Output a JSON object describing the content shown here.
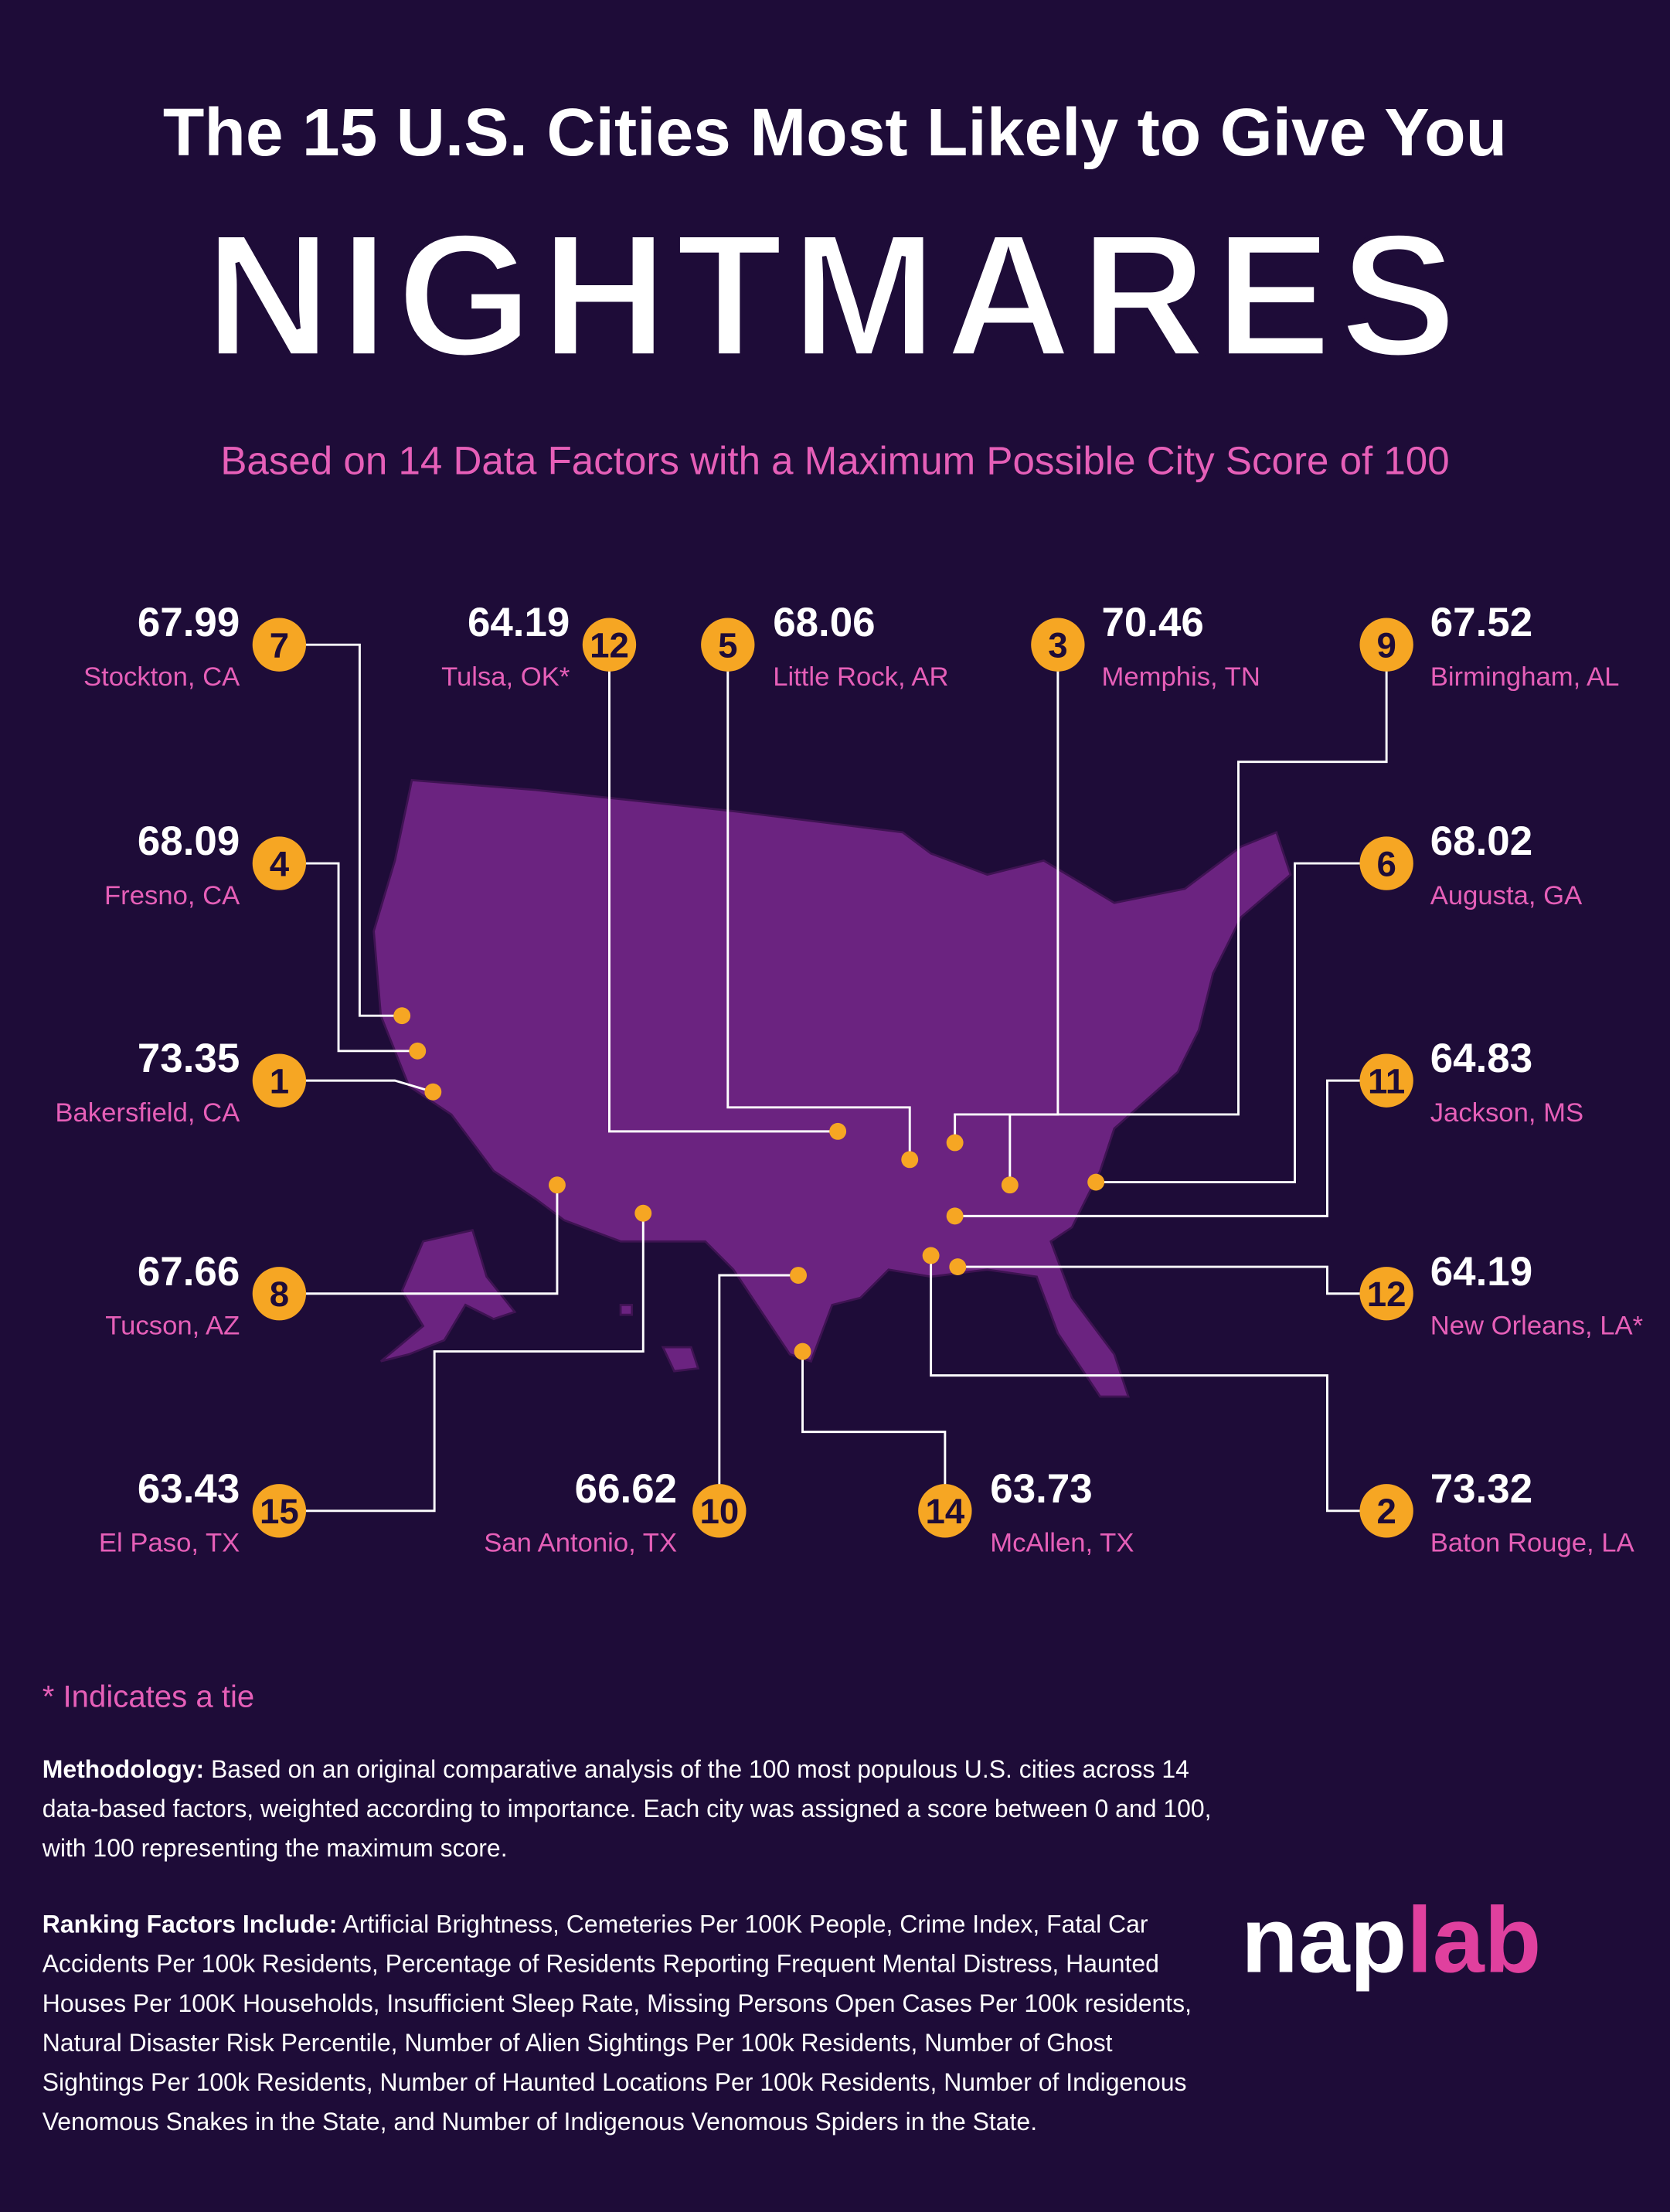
{
  "header": {
    "title": "The 15 U.S. Cities Most Likely to Give You",
    "headline": "NIGHTMARES",
    "subtitle": "Based on 14 Data Factors with a Maximum Possible City Score of 100"
  },
  "cities": [
    {
      "rank": 7,
      "score": 67.99,
      "name": "Stockton, CA"
    },
    {
      "rank": 4,
      "score": 68.09,
      "name": "Fresno, CA"
    },
    {
      "rank": 1,
      "score": 73.35,
      "name": "Bakersfield, CA"
    },
    {
      "rank": 8,
      "score": 67.66,
      "name": "Tucson, AZ"
    },
    {
      "rank": 15,
      "score": 63.43,
      "name": "El Paso, TX"
    },
    {
      "rank": 12,
      "score": 64.19,
      "name": "Tulsa, OK*"
    },
    {
      "rank": 5,
      "score": 68.06,
      "name": "Little Rock, AR"
    },
    {
      "rank": 3,
      "score": 70.46,
      "name": "Memphis, TN"
    },
    {
      "rank": 9,
      "score": 67.52,
      "name": "Birmingham, AL"
    },
    {
      "rank": 6,
      "score": 68.02,
      "name": "Augusta, GA"
    },
    {
      "rank": 11,
      "score": 64.83,
      "name": "Jackson, MS"
    },
    {
      "rank": 12,
      "score": 64.19,
      "name": "New Orleans, LA*"
    },
    {
      "rank": 2,
      "score": 73.32,
      "name": "Baton Rouge, LA"
    },
    {
      "rank": 10,
      "score": 66.62,
      "name": "San Antonio, TX"
    },
    {
      "rank": 14,
      "score": 63.73,
      "name": "McAllen, TX"
    }
  ],
  "footnote": "* Indicates a tie",
  "methodology": {
    "label": "Methodology:",
    "text": "Based on an original comparative analysis of the 100 most populous U.S. cities across 14 data-based factors, weighted according to importance. Each city was assigned a score between 0 and 100, with 100 representing the maximum score."
  },
  "ranking_factors": {
    "label": "Ranking Factors Include:",
    "text": "Artificial Brightness, Cemeteries Per 100K People, Crime Index, Fatal Car Accidents Per 100k Residents, Percentage of Residents Reporting Frequent Mental Distress, Haunted Houses Per 100K Households, Insufficient Sleep Rate, Missing Persons Open Cases Per 100k residents, Natural Disaster Risk Percentile, Number of Alien Sightings Per 100k Residents, Number of Ghost Sightings Per 100k Residents, Number of Haunted Locations Per 100k Residents, Number of Indigenous Venomous Snakes in the State, and Number of Indigenous Venomous Spiders in the State."
  },
  "logo": {
    "part1": "nap",
    "part2": "lab"
  }
}
